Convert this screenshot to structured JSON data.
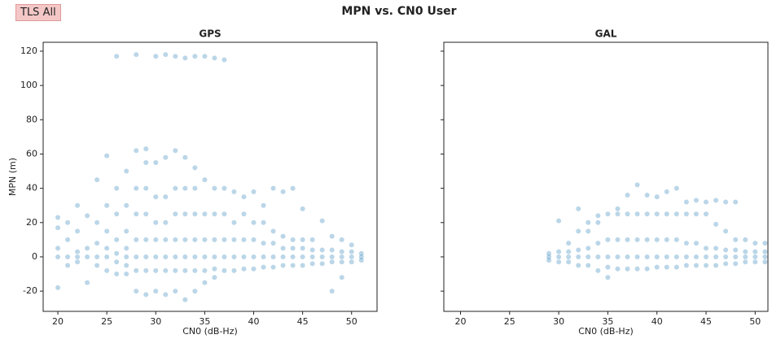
{
  "title": "MPN vs. CN0 User",
  "button": "TLS All",
  "chart_data": [
    {
      "type": "scatter",
      "title": "GPS",
      "xlabel": "CN0 (dB-Hz)",
      "ylabel": "MPN (m)",
      "color": "#1f77b4",
      "alpha": 0.3,
      "show_ytick_labels": true,
      "xlim": [
        18.5,
        52.6
      ],
      "ylim": [
        -31.8,
        125.2
      ],
      "xticks": [
        20,
        25,
        30,
        35,
        40,
        45,
        50
      ],
      "yticks": [
        -20,
        0,
        20,
        40,
        60,
        80,
        100,
        120
      ],
      "x": [
        20,
        20,
        20,
        20,
        20,
        21,
        21,
        21,
        21,
        22,
        22,
        22,
        22,
        22,
        23,
        23,
        23,
        23,
        24,
        24,
        24,
        24,
        24,
        25,
        25,
        25,
        25,
        25,
        25,
        26,
        26,
        26,
        26,
        26,
        26,
        26,
        27,
        27,
        27,
        27,
        27,
        27,
        27,
        28,
        28,
        28,
        28,
        28,
        28,
        28,
        28,
        29,
        29,
        29,
        29,
        29,
        29,
        29,
        29,
        30,
        30,
        30,
        30,
        30,
        30,
        30,
        30,
        31,
        31,
        31,
        31,
        31,
        31,
        31,
        31,
        32,
        32,
        32,
        32,
        32,
        32,
        32,
        32,
        33,
        33,
        33,
        33,
        33,
        33,
        33,
        33,
        34,
        34,
        34,
        34,
        34,
        34,
        34,
        34,
        35,
        35,
        35,
        35,
        35,
        35,
        35,
        36,
        36,
        36,
        36,
        36,
        36,
        36,
        37,
        37,
        37,
        37,
        37,
        37,
        38,
        38,
        38,
        38,
        38,
        39,
        39,
        39,
        39,
        39,
        40,
        40,
        40,
        40,
        40,
        41,
        41,
        41,
        41,
        41,
        42,
        42,
        42,
        42,
        42,
        43,
        43,
        43,
        43,
        43,
        44,
        44,
        44,
        44,
        44,
        45,
        45,
        45,
        45,
        45,
        46,
        46,
        46,
        46,
        47,
        47,
        47,
        47,
        48,
        48,
        48,
        48,
        48,
        49,
        49,
        49,
        49,
        49,
        50,
        50,
        50,
        50,
        51,
        51,
        51
      ],
      "y": [
        -18,
        0,
        5,
        17,
        23,
        -5,
        0,
        10,
        20,
        -3,
        0,
        3,
        15,
        30,
        -15,
        0,
        5,
        24,
        -5,
        0,
        8,
        20,
        45,
        -8,
        0,
        5,
        15,
        30,
        59,
        -10,
        -3,
        2,
        10,
        25,
        40,
        117,
        -10,
        -5,
        0,
        5,
        15,
        30,
        50,
        -20,
        -8,
        0,
        10,
        25,
        40,
        62,
        118,
        -22,
        -8,
        0,
        10,
        25,
        40,
        55,
        63,
        -20,
        -8,
        0,
        10,
        20,
        35,
        55,
        117,
        -22,
        -8,
        0,
        10,
        20,
        35,
        58,
        118,
        -20,
        -8,
        0,
        10,
        25,
        40,
        62,
        117,
        -25,
        -8,
        0,
        10,
        25,
        40,
        58,
        116,
        -20,
        -8,
        0,
        10,
        25,
        40,
        52,
        117,
        -15,
        -8,
        0,
        10,
        25,
        45,
        117,
        -12,
        -7,
        0,
        10,
        25,
        40,
        116,
        -8,
        0,
        10,
        25,
        40,
        115,
        -8,
        0,
        10,
        20,
        38,
        -7,
        0,
        10,
        25,
        35,
        -7,
        0,
        10,
        20,
        38,
        -6,
        0,
        8,
        20,
        30,
        -6,
        0,
        8,
        15,
        40,
        -5,
        0,
        5,
        12,
        38,
        -5,
        0,
        5,
        10,
        40,
        -5,
        0,
        5,
        10,
        28,
        -4,
        0,
        4,
        10,
        -4,
        0,
        4,
        21,
        -20,
        -3,
        0,
        4,
        12,
        -12,
        -3,
        0,
        3,
        10,
        -3,
        0,
        3,
        7,
        -2,
        0,
        2
      ]
    },
    {
      "type": "scatter",
      "title": "GAL",
      "xlabel": "CN0 (dB-Hz)",
      "color": "#1f77b4",
      "alpha": 0.3,
      "show_ytick_labels": false,
      "xlim": [
        18.3,
        51.3
      ],
      "ylim": [
        -31.8,
        125.2
      ],
      "xticks": [
        20,
        25,
        30,
        35,
        40,
        45,
        50
      ],
      "yticks": [
        -20,
        0,
        20,
        40,
        60,
        80,
        100,
        120
      ],
      "x": [
        29,
        29,
        29,
        30,
        30,
        30,
        30,
        31,
        31,
        31,
        31,
        32,
        32,
        32,
        32,
        32,
        33,
        33,
        33,
        33,
        33,
        34,
        34,
        34,
        34,
        34,
        35,
        35,
        35,
        35,
        35,
        36,
        36,
        36,
        36,
        36,
        37,
        37,
        37,
        37,
        37,
        38,
        38,
        38,
        38,
        38,
        39,
        39,
        39,
        39,
        39,
        40,
        40,
        40,
        40,
        40,
        41,
        41,
        41,
        41,
        41,
        42,
        42,
        42,
        42,
        42,
        43,
        43,
        43,
        43,
        43,
        44,
        44,
        44,
        44,
        44,
        45,
        45,
        45,
        45,
        45,
        46,
        46,
        46,
        46,
        46,
        47,
        47,
        47,
        47,
        47,
        48,
        48,
        48,
        48,
        48,
        49,
        49,
        49,
        49,
        50,
        50,
        50,
        50,
        51,
        51,
        51,
        51
      ],
      "y": [
        -2,
        0,
        2,
        -3,
        0,
        3,
        21,
        -3,
        0,
        3,
        8,
        -5,
        0,
        4,
        15,
        28,
        -5,
        0,
        5,
        15,
        20,
        -8,
        0,
        8,
        20,
        24,
        -12,
        -6,
        0,
        10,
        25,
        -7,
        0,
        10,
        25,
        28,
        -7,
        0,
        10,
        25,
        36,
        -7,
        0,
        10,
        25,
        42,
        -7,
        0,
        10,
        25,
        36,
        -6,
        0,
        10,
        25,
        35,
        -6,
        0,
        10,
        25,
        38,
        -6,
        0,
        10,
        25,
        40,
        -5,
        0,
        8,
        25,
        32,
        -5,
        0,
        8,
        25,
        33,
        -5,
        0,
        5,
        25,
        32,
        -5,
        0,
        5,
        19,
        33,
        -4,
        0,
        4,
        15,
        32,
        -4,
        0,
        4,
        10,
        32,
        -3,
        0,
        3,
        10,
        -3,
        0,
        3,
        8,
        -3,
        0,
        3,
        8
      ]
    }
  ]
}
